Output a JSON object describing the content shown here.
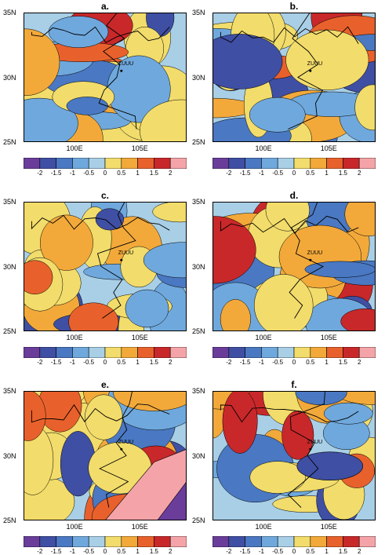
{
  "panels": [
    {
      "id": "a",
      "title": "a.",
      "lat_labels": [
        "35N",
        "30N",
        "25N"
      ],
      "lon_labels": [
        "100E",
        "105E"
      ],
      "station": "ZUUU",
      "lat_side": "right"
    },
    {
      "id": "b",
      "title": "b.",
      "lat_labels": [
        "35N",
        "30N",
        "25N"
      ],
      "lon_labels": [
        "100E",
        "105E"
      ],
      "station": "ZUUU",
      "lat_side": "left"
    },
    {
      "id": "c",
      "title": "c.",
      "lat_labels": [
        "35N",
        "30N",
        "25N"
      ],
      "lon_labels": [
        "100E",
        "105E"
      ],
      "station": "ZUUU",
      "lat_side": "right"
    },
    {
      "id": "d",
      "title": "d.",
      "lat_labels": [
        "35N",
        "30N",
        "25N"
      ],
      "lon_labels": [
        "100E",
        "105E"
      ],
      "station": "ZUUU",
      "lat_side": "left"
    },
    {
      "id": "e",
      "title": "e.",
      "lat_labels": [
        "35N",
        "30N",
        "25N"
      ],
      "lon_labels": [
        "100E",
        "105E"
      ],
      "station": "ZUUU",
      "lat_side": "right"
    },
    {
      "id": "f",
      "title": "f.",
      "lat_labels": [
        "35N",
        "30N",
        "25N"
      ],
      "lon_labels": [
        "100E",
        "105E"
      ],
      "station": "ZUUU",
      "lat_side": "left"
    }
  ],
  "colorbar": {
    "labels": [
      "-2",
      "-1.5",
      "-1",
      "-0.5",
      "0",
      "0.5",
      "1",
      "1.5",
      "2"
    ],
    "colors": [
      "#6a3d9a",
      "#3f4fa3",
      "#4a78c2",
      "#6fa8dc",
      "#a8cfe6",
      "#f2dc6b",
      "#f2a93a",
      "#e8612c",
      "#c8282a",
      "#f4a4a8"
    ]
  },
  "chart_data": {
    "type": "heatmap",
    "panels": [
      "a.",
      "b.",
      "c.",
      "d.",
      "e.",
      "f."
    ],
    "lat_ticks": [
      "35N",
      "30N",
      "25N"
    ],
    "lon_ticks": [
      "100E",
      "105E"
    ],
    "ylim": [
      25,
      35
    ],
    "station": "ZUUU",
    "contour_levels": [
      -2,
      -1.5,
      -1,
      -0.5,
      0,
      0.5,
      1,
      1.5,
      2
    ]
  }
}
